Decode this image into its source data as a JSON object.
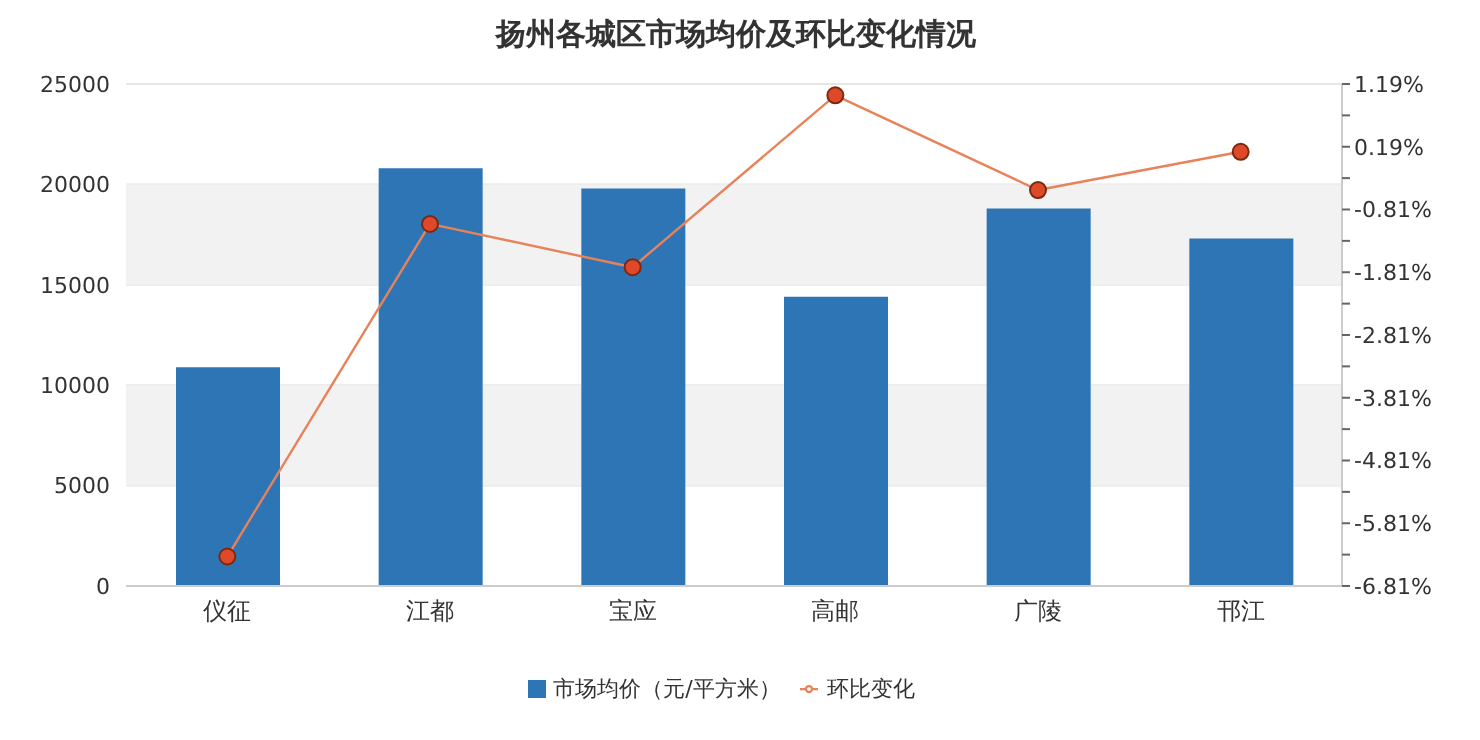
{
  "chart_data": {
    "type": "bar",
    "title": "扬州各城区市场均价及环比变化情况",
    "categories": [
      "仪征",
      "江都",
      "宝应",
      "高邮",
      "广陵",
      "邗江"
    ],
    "series": [
      {
        "name": "市场均价（元/平方米）",
        "color": "#2e75b6",
        "values": [
          10900,
          20800,
          19800,
          14400,
          18800,
          17300
        ]
      },
      {
        "name": "环比变化",
        "type": "line",
        "axis": "y2",
        "color": "#e8825a",
        "marker": "circle",
        "values": [
          -6.34,
          -1.04,
          -1.73,
          1.01,
          -0.5,
          0.11
        ]
      }
    ],
    "ylim": [
      0,
      25000
    ],
    "yticks": [
      0,
      5000,
      10000,
      15000,
      20000,
      25000
    ],
    "y2lim": [
      -6.81,
      1.19
    ],
    "y2ticks": [
      {
        "value": 1.19,
        "label": "1.19%"
      },
      {
        "value": 0.69,
        "label": null
      },
      {
        "value": 0.19,
        "label": "0.19%"
      },
      {
        "value": -0.31,
        "label": null
      },
      {
        "value": -0.81,
        "label": "-0.81%"
      },
      {
        "value": -1.31,
        "label": null
      },
      {
        "value": -1.81,
        "label": "-1.81%"
      },
      {
        "value": -2.31,
        "label": null
      },
      {
        "value": -2.81,
        "label": "-2.81%"
      },
      {
        "value": -3.31,
        "label": null
      },
      {
        "value": -3.81,
        "label": "-3.81%"
      },
      {
        "value": -4.31,
        "label": null
      },
      {
        "value": -4.81,
        "label": "-4.81%"
      },
      {
        "value": -5.31,
        "label": null
      },
      {
        "value": -5.81,
        "label": "-5.81%"
      },
      {
        "value": -6.31,
        "label": null
      },
      {
        "value": -6.81,
        "label": "-6.81%"
      }
    ],
    "bands": [
      {
        "axis": "y",
        "from": 15000,
        "to": 20000,
        "color": "#f2f2f2"
      },
      {
        "axis": "y",
        "from": 5000,
        "to": 10000,
        "color": "#f2f2f2"
      }
    ],
    "grid": "y",
    "legend": "bottom"
  }
}
